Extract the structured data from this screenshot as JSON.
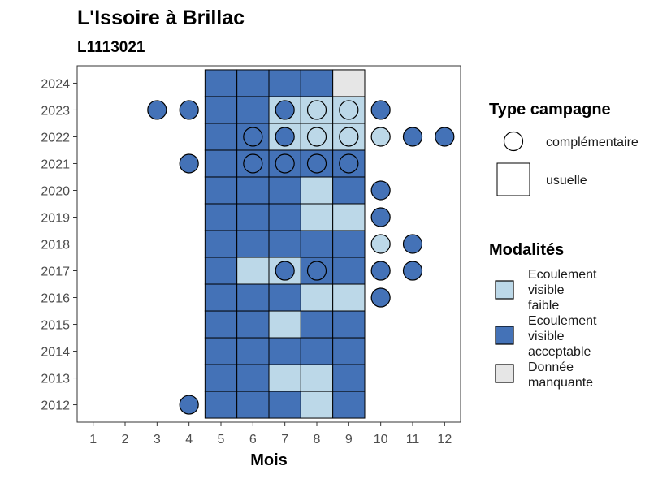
{
  "chart_data": {
    "type": "heatmap",
    "title": "L'Issoire à Brillac",
    "subtitle": "L1113021",
    "xlabel": "Mois",
    "ylabel": "",
    "x_ticks": [
      "1",
      "2",
      "3",
      "4",
      "5",
      "6",
      "7",
      "8",
      "9",
      "10",
      "11",
      "12"
    ],
    "y_ticks": [
      "2012",
      "2013",
      "2014",
      "2015",
      "2016",
      "2017",
      "2018",
      "2019",
      "2020",
      "2021",
      "2022",
      "2023",
      "2024"
    ],
    "xlim": [
      0.5,
      12.5
    ],
    "ylim": [
      2011.35,
      2024.65
    ],
    "grid": false,
    "colors": {
      "faible": "#bcd8e8",
      "acceptable": "#4472b7",
      "manquante": "#e6e6e6"
    },
    "tiles": [
      {
        "year": 2012,
        "months": [
          "acceptable",
          "acceptable",
          "acceptable",
          "faible",
          "acceptable"
        ]
      },
      {
        "year": 2013,
        "months": [
          "acceptable",
          "acceptable",
          "faible",
          "faible",
          "acceptable"
        ]
      },
      {
        "year": 2014,
        "months": [
          "acceptable",
          "acceptable",
          "acceptable",
          "acceptable",
          "acceptable"
        ]
      },
      {
        "year": 2015,
        "months": [
          "acceptable",
          "acceptable",
          "faible",
          "acceptable",
          "acceptable"
        ]
      },
      {
        "year": 2016,
        "months": [
          "acceptable",
          "acceptable",
          "acceptable",
          "faible",
          "faible"
        ]
      },
      {
        "year": 2017,
        "months": [
          "acceptable",
          "faible",
          "faible",
          "acceptable",
          "acceptable"
        ]
      },
      {
        "year": 2018,
        "months": [
          "acceptable",
          "acceptable",
          "acceptable",
          "acceptable",
          "acceptable"
        ]
      },
      {
        "year": 2019,
        "months": [
          "acceptable",
          "acceptable",
          "acceptable",
          "faible",
          "faible"
        ]
      },
      {
        "year": 2020,
        "months": [
          "acceptable",
          "acceptable",
          "acceptable",
          "faible",
          "acceptable"
        ]
      },
      {
        "year": 2021,
        "months": [
          "acceptable",
          "acceptable",
          "acceptable",
          "acceptable",
          "acceptable"
        ]
      },
      {
        "year": 2022,
        "months": [
          "acceptable",
          "acceptable",
          "faible",
          "faible",
          "faible"
        ]
      },
      {
        "year": 2023,
        "months": [
          "acceptable",
          "acceptable",
          "faible",
          "faible",
          "faible"
        ]
      },
      {
        "year": 2024,
        "months": [
          "acceptable",
          "acceptable",
          "acceptable",
          "acceptable",
          "manquante"
        ]
      }
    ],
    "tile_months": [
      5,
      6,
      7,
      8,
      9
    ],
    "points": [
      {
        "year": 2012,
        "month": 4,
        "modalite": "acceptable"
      },
      {
        "year": 2016,
        "month": 10,
        "modalite": "acceptable"
      },
      {
        "year": 2017,
        "month": 7,
        "modalite": "acceptable"
      },
      {
        "year": 2017,
        "month": 8,
        "modalite": "acceptable"
      },
      {
        "year": 2017,
        "month": 10,
        "modalite": "acceptable"
      },
      {
        "year": 2017,
        "month": 11,
        "modalite": "acceptable"
      },
      {
        "year": 2018,
        "month": 10,
        "modalite": "faible"
      },
      {
        "year": 2018,
        "month": 11,
        "modalite": "acceptable"
      },
      {
        "year": 2019,
        "month": 10,
        "modalite": "acceptable"
      },
      {
        "year": 2020,
        "month": 10,
        "modalite": "acceptable"
      },
      {
        "year": 2021,
        "month": 4,
        "modalite": "acceptable"
      },
      {
        "year": 2021,
        "month": 6,
        "modalite": "acceptable"
      },
      {
        "year": 2021,
        "month": 7,
        "modalite": "acceptable"
      },
      {
        "year": 2021,
        "month": 8,
        "modalite": "acceptable"
      },
      {
        "year": 2021,
        "month": 9,
        "modalite": "acceptable"
      },
      {
        "year": 2022,
        "month": 6,
        "modalite": "acceptable"
      },
      {
        "year": 2022,
        "month": 7,
        "modalite": "acceptable"
      },
      {
        "year": 2022,
        "month": 8,
        "modalite": "faible"
      },
      {
        "year": 2022,
        "month": 9,
        "modalite": "faible"
      },
      {
        "year": 2022,
        "month": 10,
        "modalite": "faible"
      },
      {
        "year": 2022,
        "month": 11,
        "modalite": "acceptable"
      },
      {
        "year": 2022,
        "month": 12,
        "modalite": "acceptable"
      },
      {
        "year": 2023,
        "month": 3,
        "modalite": "acceptable"
      },
      {
        "year": 2023,
        "month": 4,
        "modalite": "acceptable"
      },
      {
        "year": 2023,
        "month": 7,
        "modalite": "acceptable"
      },
      {
        "year": 2023,
        "month": 8,
        "modalite": "faible"
      },
      {
        "year": 2023,
        "month": 9,
        "modalite": "faible"
      },
      {
        "year": 2023,
        "month": 10,
        "modalite": "acceptable"
      }
    ],
    "legend": {
      "placement": "right",
      "type_campagne": {
        "title": "Type campagne",
        "items": [
          {
            "label": "complémentaire",
            "shape": "circle"
          },
          {
            "label": "usuelle",
            "shape": "square"
          }
        ]
      },
      "modalites": {
        "title": "Modalités",
        "items": [
          {
            "key": "faible",
            "lines": [
              "Ecoulement",
              "visible",
              "faible"
            ]
          },
          {
            "key": "acceptable",
            "lines": [
              "Ecoulement",
              "visible",
              "acceptable"
            ]
          },
          {
            "key": "manquante",
            "lines": [
              "Donnée",
              "manquante"
            ]
          }
        ]
      }
    }
  }
}
